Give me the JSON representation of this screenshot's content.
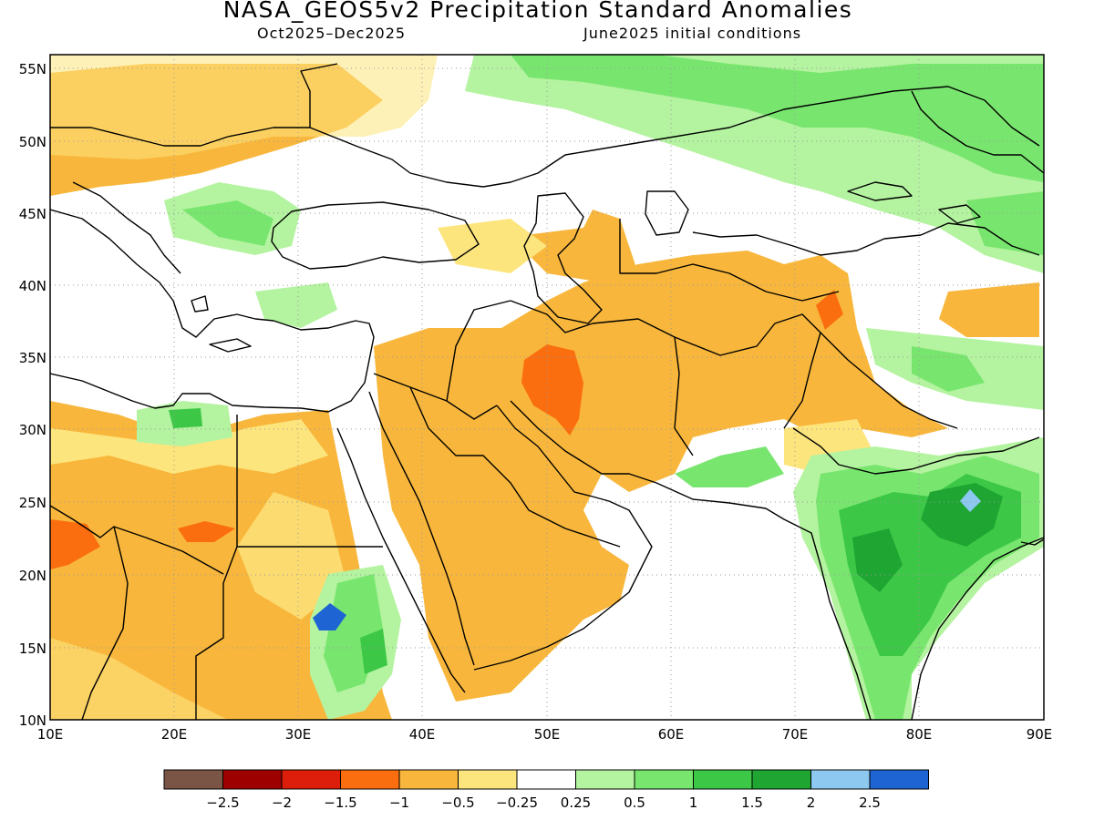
{
  "title": "NASA_GEOS5v2 Precipitation Standard Anomalies",
  "subtitle_left": "Oct2025–Dec2025",
  "subtitle_right": "June2025 initial conditions",
  "map": {
    "lat_labels": [
      "55N",
      "50N",
      "45N",
      "40N",
      "35N",
      "30N",
      "25N",
      "20N",
      "15N",
      "10N"
    ],
    "lon_labels": [
      "10E",
      "20E",
      "30E",
      "40E",
      "50E",
      "60E",
      "70E",
      "80E",
      "90E"
    ],
    "grid": "dotted",
    "region": "Middle East, North Africa, Central and South Asia"
  },
  "legend": {
    "colors": [
      "#7a5545",
      "#9e0000",
      "#dc1e0a",
      "#fa6e0f",
      "#f8b73c",
      "#fde57e",
      "#ffffff",
      "#b4f3a0",
      "#78e66e",
      "#3cc846",
      "#1ea532",
      "#8cc8f0",
      "#1e64d2"
    ],
    "labels": [
      "−2.5",
      "−2",
      "−1.5",
      "−1",
      "−0.5",
      "−0.25",
      "0.25",
      "0.5",
      "1",
      "1.5",
      "2",
      "2.5"
    ]
  }
}
